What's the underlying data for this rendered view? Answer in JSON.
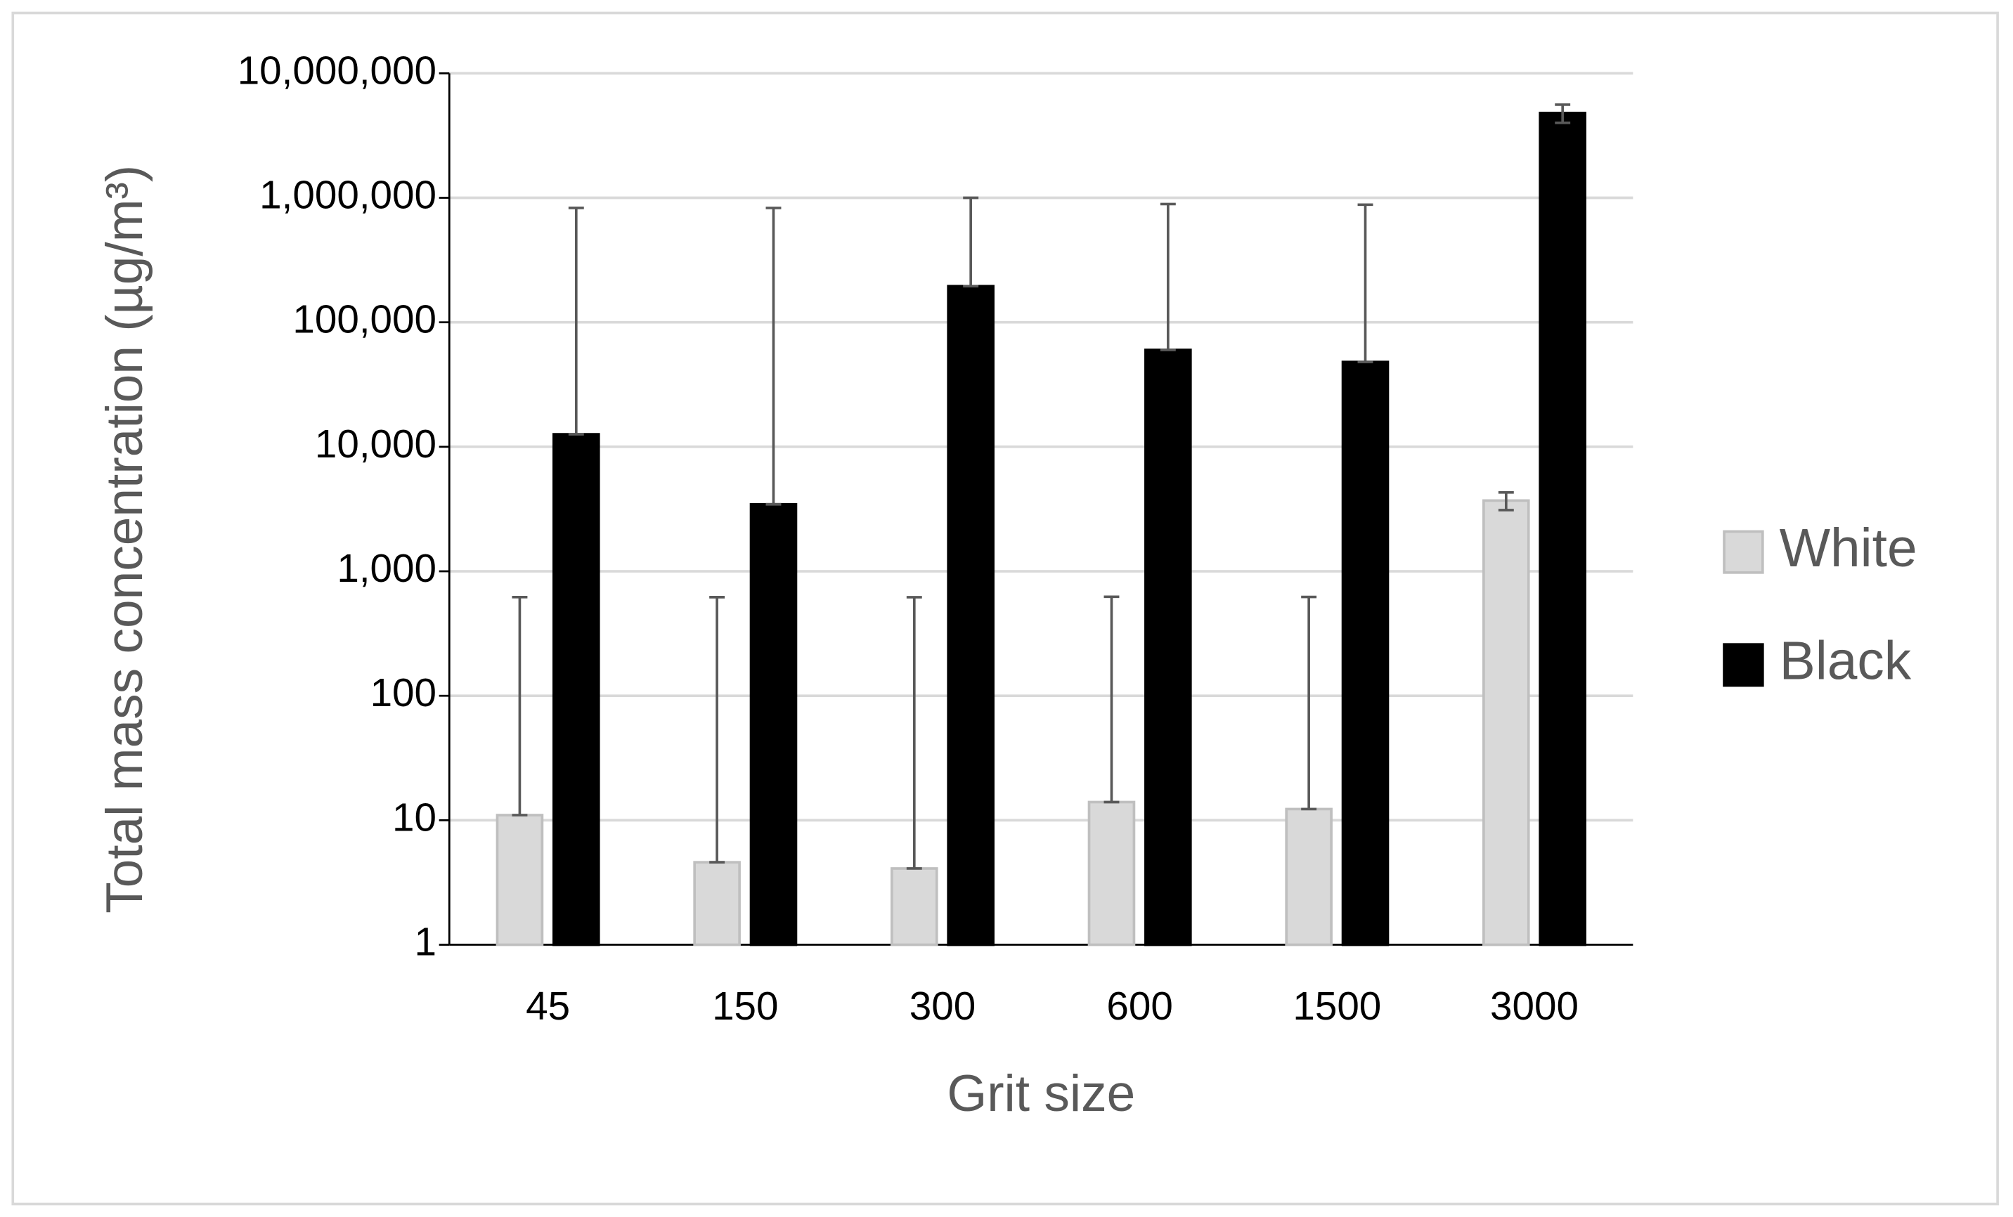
{
  "chart_data": {
    "type": "bar",
    "x_label": "Grit size",
    "y_label": "Total mass concentration (µg/m³)",
    "categories": [
      "45",
      "150",
      "300",
      "600",
      "1500",
      "3000"
    ],
    "series": [
      {
        "name": "White",
        "color": "#d9d9d9",
        "values": [
          11,
          4.6,
          4.1,
          14,
          12.3,
          3700
        ],
        "errors": [
          609,
          615,
          615,
          610,
          610,
          600
        ]
      },
      {
        "name": "Black",
        "color": "#000000",
        "values": [
          12600,
          3450,
          195000,
          60000,
          48000,
          4800000
        ],
        "errors": [
          817000,
          826000,
          805000,
          830000,
          832000,
          800000
        ]
      }
    ],
    "log_scale": true,
    "ylim": [
      1,
      10000000
    ],
    "yticks": [
      1,
      10,
      100,
      {
        "value": 1000,
        "label": "1,000"
      },
      {
        "value": 10000,
        "label": "10,000"
      },
      {
        "value": 100000,
        "label": "100,000"
      },
      {
        "value": 1000000,
        "label": "1,000,000"
      },
      {
        "value": 10000000,
        "label": "10,000,000"
      }
    ],
    "grid": true,
    "legend_position": "right"
  }
}
